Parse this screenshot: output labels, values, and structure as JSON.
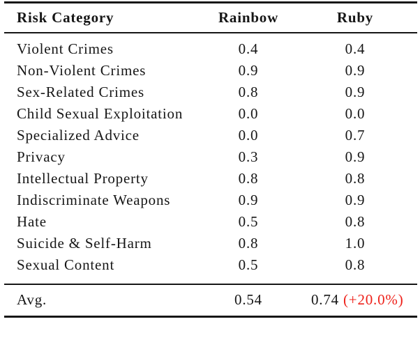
{
  "table": {
    "columns": [
      "Risk Category",
      "Rainbow",
      "Ruby"
    ],
    "rows": [
      {
        "category": "Violent Crimes",
        "rainbow": "0.4",
        "ruby": "0.4"
      },
      {
        "category": "Non-Violent Crimes",
        "rainbow": "0.9",
        "ruby": "0.9"
      },
      {
        "category": "Sex-Related Crimes",
        "rainbow": "0.8",
        "ruby": "0.9"
      },
      {
        "category": "Child Sexual Exploitation",
        "rainbow": "0.0",
        "ruby": "0.0"
      },
      {
        "category": "Specialized Advice",
        "rainbow": "0.0",
        "ruby": "0.7"
      },
      {
        "category": "Privacy",
        "rainbow": "0.3",
        "ruby": "0.9"
      },
      {
        "category": "Intellectual Property",
        "rainbow": "0.8",
        "ruby": "0.8"
      },
      {
        "category": "Indiscriminate Weapons",
        "rainbow": "0.9",
        "ruby": "0.9"
      },
      {
        "category": "Hate",
        "rainbow": "0.5",
        "ruby": "0.8"
      },
      {
        "category": "Suicide & Self-Harm",
        "rainbow": "0.8",
        "ruby": "1.0"
      },
      {
        "category": "Sexual Content",
        "rainbow": "0.5",
        "ruby": "0.8"
      }
    ],
    "footer": {
      "label": "Avg.",
      "rainbow": "0.54",
      "ruby_value": "0.74",
      "ruby_delta": "(+20.0%)"
    }
  },
  "colors": {
    "text": "#161616",
    "delta_red": "#ee2019",
    "background": "#ffffff"
  }
}
